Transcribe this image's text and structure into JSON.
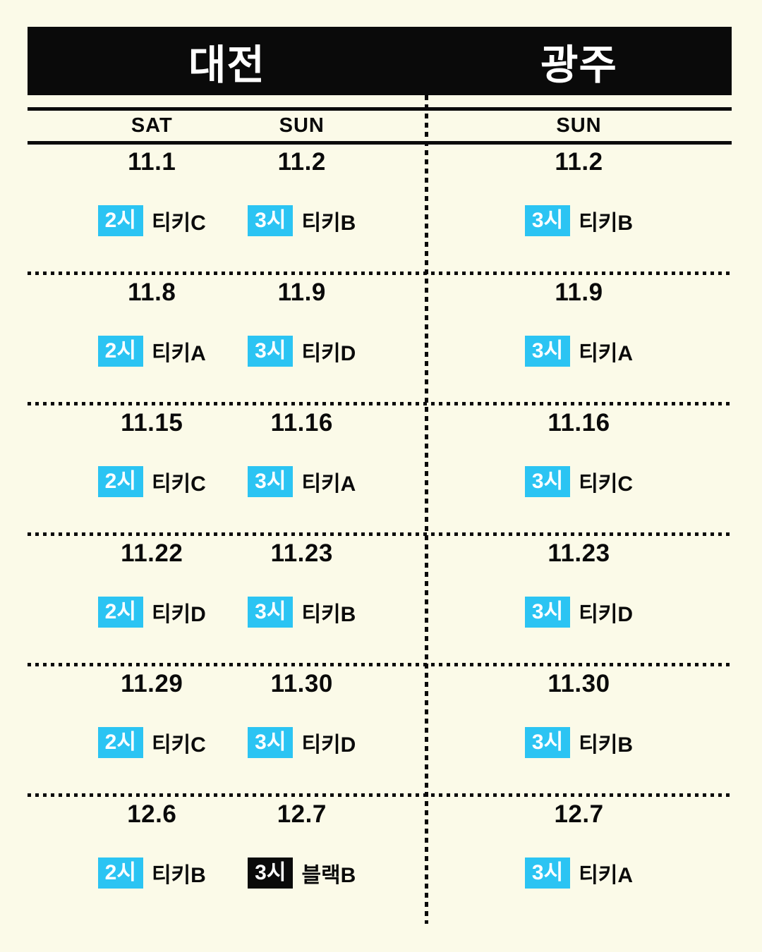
{
  "meta": {
    "background_color": "#FBFAE8",
    "ink_color": "#0A0A0A",
    "accent_color": "#2BC4F3",
    "badge_text_color": "#FFFFFF"
  },
  "header": {
    "left_title": "대전",
    "right_title": "광주"
  },
  "day_header": {
    "left": [
      "SAT",
      "SUN"
    ],
    "right": [
      "SUN"
    ]
  },
  "schedule": {
    "rows": [
      {
        "left": [
          {
            "date": "11.1",
            "time": "2시",
            "label": "티키C",
            "badge_style": "cyan"
          },
          {
            "date": "11.2",
            "time": "3시",
            "label": "티키B",
            "badge_style": "cyan"
          }
        ],
        "right": [
          {
            "date": "11.2",
            "time": "3시",
            "label": "티키B",
            "badge_style": "cyan"
          }
        ]
      },
      {
        "left": [
          {
            "date": "11.8",
            "time": "2시",
            "label": "티키A",
            "badge_style": "cyan"
          },
          {
            "date": "11.9",
            "time": "3시",
            "label": "티키D",
            "badge_style": "cyan"
          }
        ],
        "right": [
          {
            "date": "11.9",
            "time": "3시",
            "label": "티키A",
            "badge_style": "cyan"
          }
        ]
      },
      {
        "left": [
          {
            "date": "11.15",
            "time": "2시",
            "label": "티키C",
            "badge_style": "cyan"
          },
          {
            "date": "11.16",
            "time": "3시",
            "label": "티키A",
            "badge_style": "cyan"
          }
        ],
        "right": [
          {
            "date": "11.16",
            "time": "3시",
            "label": "티키C",
            "badge_style": "cyan"
          }
        ]
      },
      {
        "left": [
          {
            "date": "11.22",
            "time": "2시",
            "label": "티키D",
            "badge_style": "cyan"
          },
          {
            "date": "11.23",
            "time": "3시",
            "label": "티키B",
            "badge_style": "cyan"
          }
        ],
        "right": [
          {
            "date": "11.23",
            "time": "3시",
            "label": "티키D",
            "badge_style": "cyan"
          }
        ]
      },
      {
        "left": [
          {
            "date": "11.29",
            "time": "2시",
            "label": "티키C",
            "badge_style": "cyan"
          },
          {
            "date": "11.30",
            "time": "3시",
            "label": "티키D",
            "badge_style": "cyan"
          }
        ],
        "right": [
          {
            "date": "11.30",
            "time": "3시",
            "label": "티키B",
            "badge_style": "cyan"
          }
        ]
      },
      {
        "left": [
          {
            "date": "12.6",
            "time": "2시",
            "label": "티키B",
            "badge_style": "cyan"
          },
          {
            "date": "12.7",
            "time": "3시",
            "label": "블랙B",
            "badge_style": "black"
          }
        ],
        "right": [
          {
            "date": "12.7",
            "time": "3시",
            "label": "티키A",
            "badge_style": "cyan"
          }
        ]
      }
    ]
  }
}
